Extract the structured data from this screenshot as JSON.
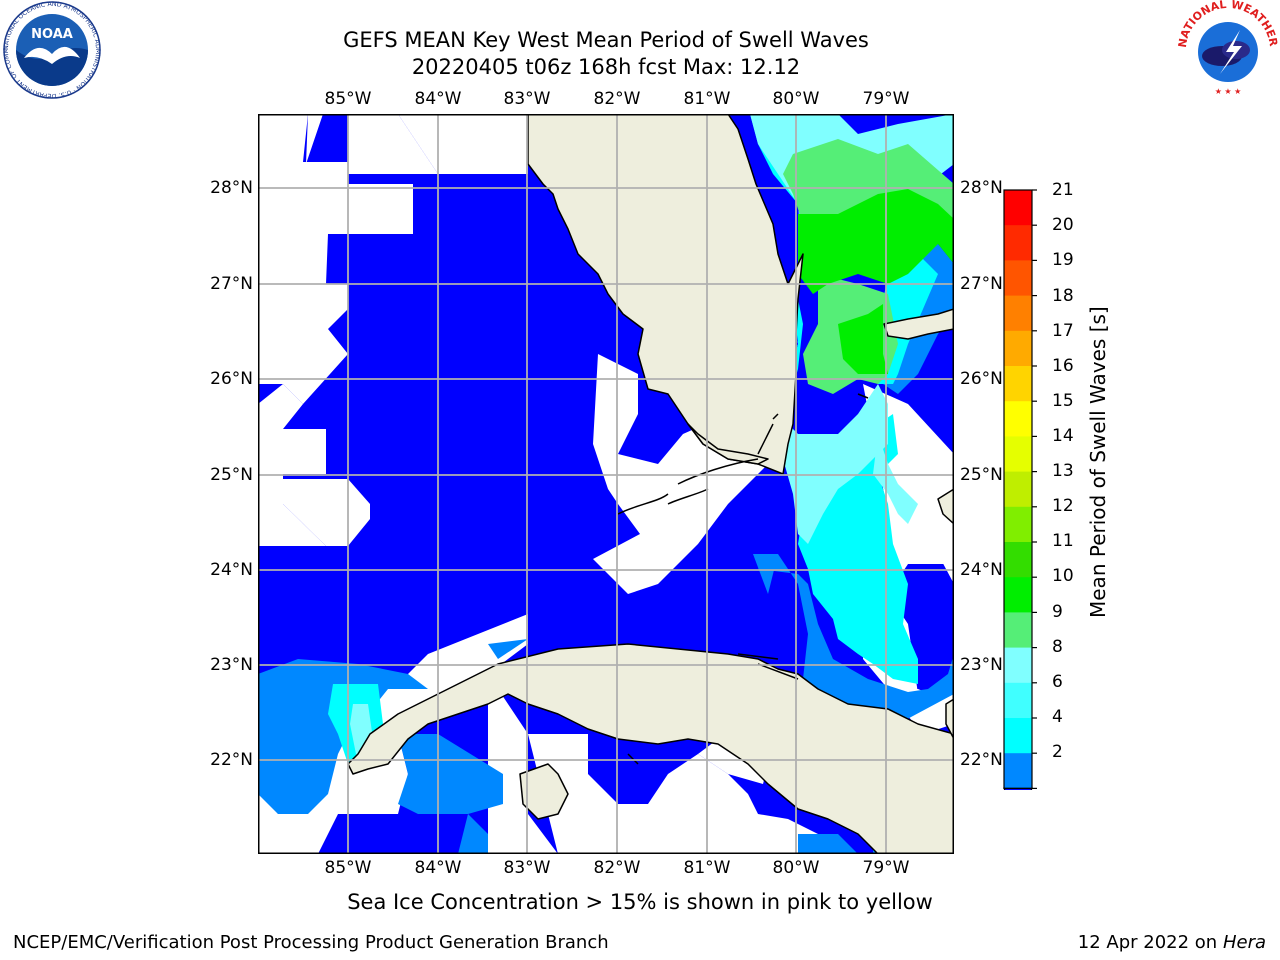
{
  "title": {
    "line1": "GEFS MEAN Key West Mean Period of Swell Waves",
    "line2": "20220405 t06z 168h fcst   Max: 12.12"
  },
  "map": {
    "lon_labels": [
      "85°W",
      "84°W",
      "83°W",
      "82°W",
      "81°W",
      "80°W",
      "79°W"
    ],
    "lat_labels": [
      "28°N",
      "27°N",
      "26°N",
      "25°N",
      "24°N",
      "23°N",
      "22°N"
    ],
    "colors": {
      "ocean_low": "#0000ff",
      "ocean_mid": "#0088ff",
      "cyan": "#00ffff",
      "light_cyan": "#80ffff",
      "green_light": "#55ee77",
      "green": "#00ee00",
      "land": "#eeeedd",
      "no_data": "#ffffff",
      "grid": "#b0b0b0"
    }
  },
  "colorbar": {
    "label": "Mean Period of Swell Waves [s]",
    "ticks": [
      "21",
      "20",
      "19",
      "18",
      "17",
      "16",
      "15",
      "14",
      "13",
      "12",
      "11",
      "10",
      "9",
      "8",
      "6",
      "4",
      "2"
    ],
    "colors": [
      "#ff0000",
      "#ff2a00",
      "#ff5500",
      "#ff8000",
      "#ffaa00",
      "#ffd400",
      "#ffff00",
      "#e5ff00",
      "#bfee00",
      "#80ee00",
      "#33dd00",
      "#00ee00",
      "#55ee77",
      "#80ffff",
      "#40ffff",
      "#00ffff",
      "#0088ff"
    ],
    "extend_color": "#0000ff"
  },
  "note": "Sea Ice Concentration > 15% is shown in pink to yellow",
  "footer": {
    "left": "NCEP/EMC/Verification Post Processing Product Generation Branch",
    "right_date": "12 Apr 2022 on ",
    "right_machine": "Hera"
  },
  "logos": {
    "noaa": "NOAA",
    "noaa_ring": "NATIONAL OCEANIC AND ATMOSPHERIC ADMINISTRATION · U.S. DEPARTMENT OF COMMERCE ·",
    "nws_ring": "NATIONAL WEATHER SERVICE"
  }
}
